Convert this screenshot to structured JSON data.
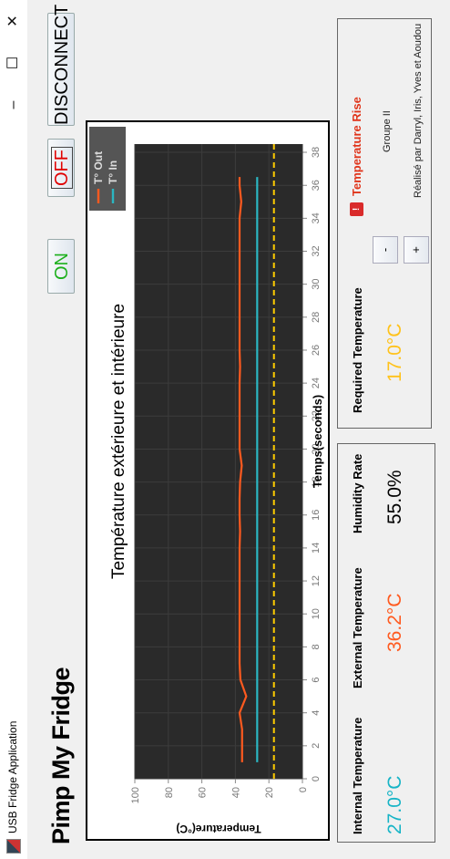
{
  "window": {
    "title": "USB Fridge Application",
    "minimize": "–",
    "maximize": "☐",
    "close": "✕"
  },
  "app_title": "Pimp My Fridge",
  "controls": {
    "on_label": "ON",
    "off_label": "OFF",
    "disconnect_label": "DISCONNECT"
  },
  "colors": {
    "out_series": "#ff5a1f",
    "in_series": "#2bb6c2",
    "required_line": "#ffcc00",
    "plot_bg": "#2a2a2a",
    "on_text": "#1db01d",
    "off_text": "#e00000"
  },
  "chart_data": {
    "type": "line",
    "title": "Température extérieure et intérieure",
    "xlabel": "Temps(seconds)",
    "ylabel": "Temperature(°C)",
    "xlim": [
      0,
      38.5
    ],
    "ylim": [
      0,
      100
    ],
    "x_ticks": [
      0,
      2,
      4,
      6,
      8,
      10,
      12,
      14,
      16,
      18,
      20,
      22,
      24,
      26,
      28,
      30,
      32,
      34,
      36,
      38
    ],
    "y_ticks": [
      0,
      20,
      40,
      60,
      80,
      100
    ],
    "grid": true,
    "legend_position": "top-right",
    "series": [
      {
        "name": "T° Out",
        "x": [
          1,
          3,
          4,
          5,
          6,
          7,
          8,
          9,
          10,
          11,
          12,
          13,
          14,
          15,
          16,
          17,
          18,
          19,
          20,
          21,
          22,
          23,
          24,
          25,
          26,
          27,
          28,
          29,
          30,
          31,
          32,
          33,
          34,
          35,
          36,
          36.5
        ],
        "values": [
          36,
          36,
          37.5,
          33.5,
          37,
          37.5,
          37.5,
          37.5,
          37.5,
          37.5,
          37.5,
          37.5,
          37.5,
          37.2,
          37.5,
          37.5,
          37.2,
          36.2,
          37.5,
          37.5,
          37.5,
          37.5,
          37.5,
          37.2,
          37.5,
          37.5,
          37.5,
          37.5,
          37.5,
          37.5,
          37.5,
          37.5,
          37.5,
          36.5,
          37.5,
          37.5
        ]
      },
      {
        "name": "T° In",
        "x": [
          1,
          36.5
        ],
        "values": [
          27,
          27
        ]
      }
    ],
    "required_temperature": 17
  },
  "readouts": {
    "internal": {
      "label": "Internal Temperature",
      "value": "27.0°C"
    },
    "external": {
      "label": "External Temperature",
      "value": "36.2°C"
    },
    "humidity": {
      "label": "Humidity Rate",
      "value": "55.0%"
    }
  },
  "settings": {
    "required_label": "Required Temperature",
    "required_value": "17.0°C",
    "minus_label": "-",
    "plus_label": "+",
    "alert_label": "Temperature Rise",
    "alert_icon": "warning-icon",
    "group": "Groupe II",
    "credits": "Réalisé par Darryl, Iris, Yves et Aoudou"
  }
}
